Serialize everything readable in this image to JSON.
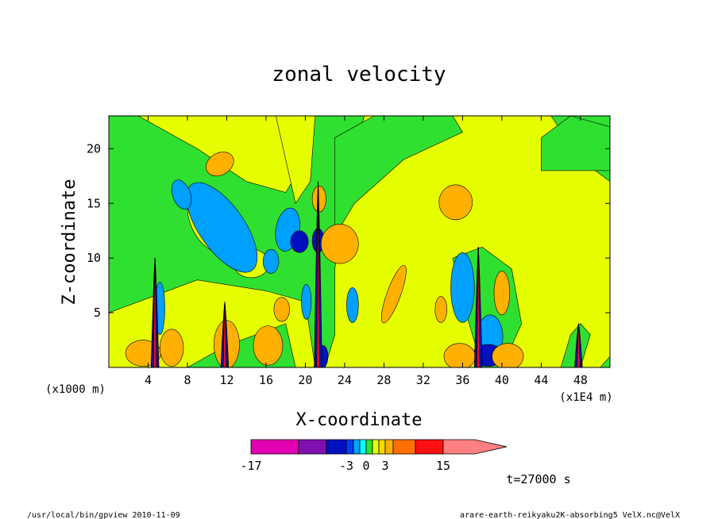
{
  "chart_data": {
    "type": "heatmap",
    "title": "zonal velocity",
    "xlabel": "X-coordinate",
    "ylabel": "Z-coordinate",
    "x_unit_left": "(x1000 m)",
    "x_unit_right": "(x1E4 m)",
    "xlim": [
      0,
      51
    ],
    "ylim": [
      0,
      23
    ],
    "xticks": [
      4,
      8,
      12,
      16,
      20,
      24,
      28,
      32,
      36,
      40,
      44,
      48
    ],
    "yticks": [
      5,
      10,
      15,
      20
    ],
    "colorbar": {
      "levels": [
        -17,
        -11,
        -7,
        -3,
        -2,
        -1,
        0,
        1,
        2,
        3,
        7,
        11,
        15
      ],
      "labels": [
        "-17",
        "-3",
        "0",
        "3",
        "15"
      ],
      "label_values": [
        -17,
        -3,
        0,
        3,
        15
      ],
      "colors": [
        "#e000b0",
        "#8010b0",
        "#0010c0",
        "#0040f0",
        "#00a0ff",
        "#00ffff",
        "#30e030",
        "#e6ff00",
        "#ffd800",
        "#ffb000",
        "#ff7000",
        "#ff1010",
        "#ff8080"
      ]
    },
    "features": [
      {
        "kind": "mountain-wave",
        "x": 21.3,
        "z_top": 17
      },
      {
        "kind": "mountain-wave",
        "x": 37.6,
        "z_top": 11
      },
      {
        "kind": "mountain-wave",
        "x": 4.7,
        "z_top": 10
      },
      {
        "kind": "mountain-wave",
        "x": 11.8,
        "z_top": 6
      },
      {
        "kind": "mountain-wave",
        "x": 47.8,
        "z_top": 4
      }
    ]
  },
  "annotations": {
    "time": "t=27000 s",
    "program": "/usr/local/bin/gpview  2010-11-09",
    "source": "arare-earth-reikyaku2K-absorbing5_VelX.nc@VelX"
  }
}
